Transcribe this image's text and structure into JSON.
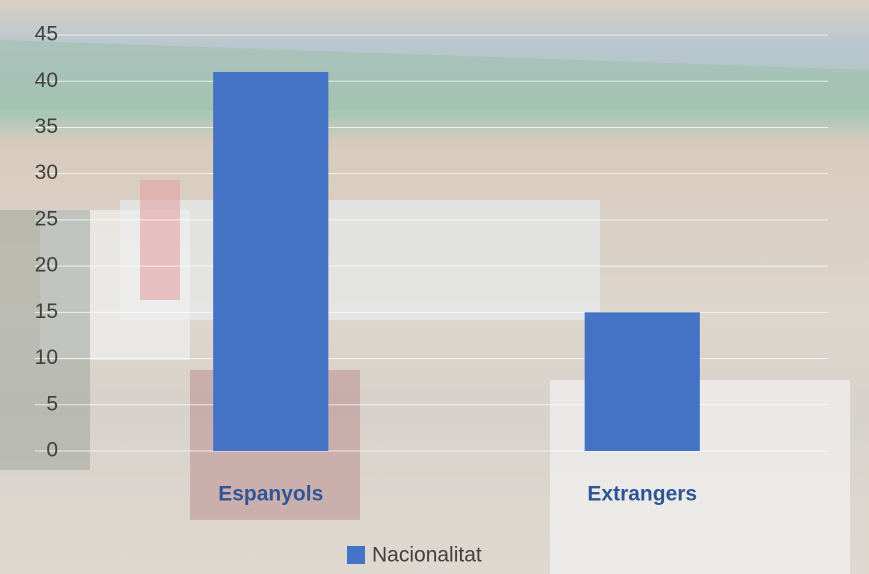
{
  "chart_data": {
    "type": "bar",
    "categories": [
      "Espanyols",
      "Extrangers"
    ],
    "series": [
      {
        "name": "Nacionalitat",
        "color": "#4472c4",
        "values": [
          41,
          15
        ]
      }
    ],
    "ylim": [
      0,
      45
    ],
    "yticks": [
      0,
      5,
      10,
      15,
      20,
      25,
      30,
      35,
      40,
      45
    ],
    "grid": true,
    "legend": "bottom"
  }
}
